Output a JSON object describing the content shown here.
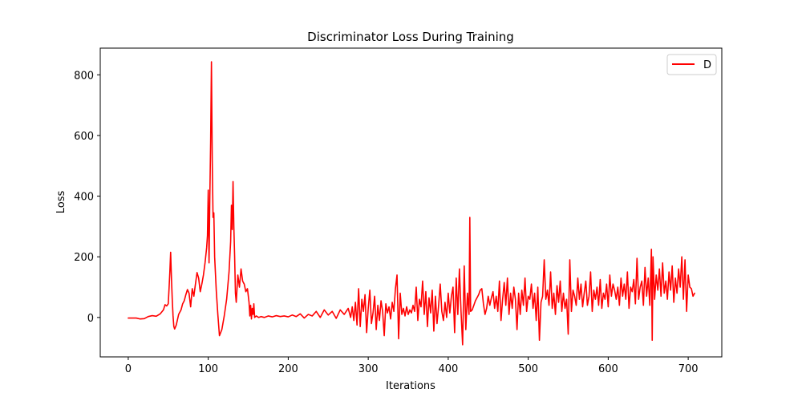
{
  "chart_data": {
    "type": "line",
    "title": "Discriminator Loss During Training",
    "xlabel": "Iterations",
    "ylabel": "Loss",
    "xlim": [
      -35,
      742
    ],
    "ylim": [
      -130,
      888
    ],
    "xticks": [
      0,
      100,
      200,
      300,
      400,
      500,
      600,
      700
    ],
    "yticks": [
      0,
      200,
      400,
      600,
      800
    ],
    "grid": false,
    "legend_position": "top-right",
    "series": [
      {
        "name": "D",
        "color": "#ff0000",
        "points": [
          [
            0,
            -2
          ],
          [
            5,
            -2
          ],
          [
            10,
            -2
          ],
          [
            15,
            -5
          ],
          [
            20,
            -4
          ],
          [
            25,
            3
          ],
          [
            30,
            6
          ],
          [
            35,
            4
          ],
          [
            40,
            12
          ],
          [
            44,
            25
          ],
          [
            46,
            42
          ],
          [
            48,
            38
          ],
          [
            50,
            45
          ],
          [
            51,
            95
          ],
          [
            52,
            150
          ],
          [
            53,
            215
          ],
          [
            54,
            130
          ],
          [
            55,
            60
          ],
          [
            56,
            5
          ],
          [
            57,
            -30
          ],
          [
            58,
            -38
          ],
          [
            60,
            -25
          ],
          [
            63,
            10
          ],
          [
            66,
            25
          ],
          [
            68,
            45
          ],
          [
            70,
            55
          ],
          [
            72,
            75
          ],
          [
            74,
            92
          ],
          [
            76,
            80
          ],
          [
            78,
            35
          ],
          [
            80,
            95
          ],
          [
            82,
            70
          ],
          [
            84,
            110
          ],
          [
            86,
            148
          ],
          [
            88,
            130
          ],
          [
            90,
            85
          ],
          [
            92,
            110
          ],
          [
            94,
            140
          ],
          [
            96,
            180
          ],
          [
            98,
            230
          ],
          [
            99,
            270
          ],
          [
            100,
            420
          ],
          [
            101,
            180
          ],
          [
            102,
            400
          ],
          [
            103,
            580
          ],
          [
            104,
            843
          ],
          [
            105,
            520
          ],
          [
            106,
            330
          ],
          [
            107,
            345
          ],
          [
            108,
            200
          ],
          [
            110,
            90
          ],
          [
            112,
            10
          ],
          [
            114,
            -60
          ],
          [
            117,
            -40
          ],
          [
            120,
            5
          ],
          [
            123,
            60
          ],
          [
            126,
            150
          ],
          [
            128,
            250
          ],
          [
            129,
            370
          ],
          [
            130,
            290
          ],
          [
            131,
            448
          ],
          [
            132,
            300
          ],
          [
            133,
            200
          ],
          [
            134,
            80
          ],
          [
            135,
            50
          ],
          [
            137,
            140
          ],
          [
            139,
            100
          ],
          [
            141,
            160
          ],
          [
            143,
            120
          ],
          [
            145,
            110
          ],
          [
            147,
            85
          ],
          [
            149,
            95
          ],
          [
            151,
            50
          ],
          [
            152,
            5
          ],
          [
            153,
            40
          ],
          [
            154,
            -5
          ],
          [
            155,
            30
          ],
          [
            156,
            10
          ],
          [
            157,
            45
          ],
          [
            158,
            0
          ],
          [
            160,
            5
          ],
          [
            163,
            0
          ],
          [
            166,
            3
          ],
          [
            170,
            0
          ],
          [
            175,
            5
          ],
          [
            180,
            2
          ],
          [
            185,
            6
          ],
          [
            190,
            3
          ],
          [
            195,
            5
          ],
          [
            200,
            2
          ],
          [
            205,
            8
          ],
          [
            210,
            3
          ],
          [
            215,
            12
          ],
          [
            220,
            -2
          ],
          [
            225,
            10
          ],
          [
            230,
            5
          ],
          [
            235,
            20
          ],
          [
            240,
            0
          ],
          [
            245,
            25
          ],
          [
            250,
            8
          ],
          [
            255,
            20
          ],
          [
            260,
            -3
          ],
          [
            265,
            25
          ],
          [
            270,
            10
          ],
          [
            275,
            30
          ],
          [
            278,
            0
          ],
          [
            280,
            35
          ],
          [
            282,
            -10
          ],
          [
            284,
            50
          ],
          [
            286,
            -25
          ],
          [
            288,
            95
          ],
          [
            290,
            -30
          ],
          [
            292,
            60
          ],
          [
            294,
            20
          ],
          [
            296,
            75
          ],
          [
            298,
            -50
          ],
          [
            300,
            30
          ],
          [
            302,
            90
          ],
          [
            304,
            -20
          ],
          [
            306,
            15
          ],
          [
            308,
            70
          ],
          [
            310,
            -40
          ],
          [
            312,
            40
          ],
          [
            314,
            -10
          ],
          [
            316,
            55
          ],
          [
            318,
            20
          ],
          [
            320,
            -60
          ],
          [
            322,
            45
          ],
          [
            324,
            15
          ],
          [
            326,
            35
          ],
          [
            328,
            -5
          ],
          [
            330,
            50
          ],
          [
            332,
            20
          ],
          [
            334,
            95
          ],
          [
            336,
            140
          ],
          [
            338,
            -70
          ],
          [
            340,
            80
          ],
          [
            342,
            10
          ],
          [
            344,
            30
          ],
          [
            346,
            5
          ],
          [
            348,
            35
          ],
          [
            350,
            10
          ],
          [
            352,
            25
          ],
          [
            354,
            15
          ],
          [
            356,
            40
          ],
          [
            358,
            20
          ],
          [
            360,
            100
          ],
          [
            362,
            -10
          ],
          [
            364,
            60
          ],
          [
            366,
            35
          ],
          [
            368,
            120
          ],
          [
            370,
            10
          ],
          [
            372,
            85
          ],
          [
            374,
            -30
          ],
          [
            376,
            65
          ],
          [
            378,
            15
          ],
          [
            380,
            90
          ],
          [
            382,
            -45
          ],
          [
            384,
            70
          ],
          [
            386,
            -20
          ],
          [
            388,
            40
          ],
          [
            390,
            110
          ],
          [
            392,
            20
          ],
          [
            394,
            -10
          ],
          [
            396,
            50
          ],
          [
            398,
            0
          ],
          [
            400,
            80
          ],
          [
            402,
            15
          ],
          [
            404,
            70
          ],
          [
            406,
            100
          ],
          [
            408,
            -50
          ],
          [
            410,
            130
          ],
          [
            412,
            10
          ],
          [
            414,
            160
          ],
          [
            416,
            20
          ],
          [
            418,
            -90
          ],
          [
            420,
            170
          ],
          [
            422,
            -40
          ],
          [
            424,
            80
          ],
          [
            426,
            10
          ],
          [
            427,
            330
          ],
          [
            428,
            20
          ],
          [
            430,
            25
          ],
          [
            432,
            40
          ],
          [
            434,
            55
          ],
          [
            436,
            65
          ],
          [
            438,
            75
          ],
          [
            440,
            90
          ],
          [
            442,
            95
          ],
          [
            444,
            45
          ],
          [
            446,
            10
          ],
          [
            448,
            30
          ],
          [
            450,
            70
          ],
          [
            452,
            40
          ],
          [
            454,
            65
          ],
          [
            456,
            85
          ],
          [
            458,
            30
          ],
          [
            460,
            70
          ],
          [
            462,
            20
          ],
          [
            464,
            120
          ],
          [
            466,
            -10
          ],
          [
            468,
            60
          ],
          [
            470,
            115
          ],
          [
            472,
            40
          ],
          [
            474,
            130
          ],
          [
            476,
            10
          ],
          [
            478,
            80
          ],
          [
            480,
            30
          ],
          [
            482,
            100
          ],
          [
            484,
            60
          ],
          [
            486,
            -40
          ],
          [
            488,
            80
          ],
          [
            490,
            10
          ],
          [
            492,
            90
          ],
          [
            494,
            40
          ],
          [
            496,
            130
          ],
          [
            498,
            20
          ],
          [
            500,
            70
          ],
          [
            502,
            60
          ],
          [
            504,
            110
          ],
          [
            506,
            30
          ],
          [
            508,
            80
          ],
          [
            510,
            -10
          ],
          [
            512,
            100
          ],
          [
            514,
            -75
          ],
          [
            516,
            50
          ],
          [
            518,
            70
          ],
          [
            520,
            190
          ],
          [
            522,
            60
          ],
          [
            524,
            90
          ],
          [
            526,
            40
          ],
          [
            528,
            150
          ],
          [
            530,
            30
          ],
          [
            532,
            80
          ],
          [
            534,
            10
          ],
          [
            536,
            105
          ],
          [
            538,
            50
          ],
          [
            540,
            120
          ],
          [
            542,
            20
          ],
          [
            544,
            80
          ],
          [
            546,
            30
          ],
          [
            548,
            60
          ],
          [
            550,
            -55
          ],
          [
            552,
            190
          ],
          [
            554,
            20
          ],
          [
            556,
            90
          ],
          [
            558,
            70
          ],
          [
            560,
            40
          ],
          [
            562,
            130
          ],
          [
            564,
            60
          ],
          [
            566,
            110
          ],
          [
            568,
            35
          ],
          [
            570,
            80
          ],
          [
            572,
            120
          ],
          [
            574,
            40
          ],
          [
            576,
            70
          ],
          [
            578,
            150
          ],
          [
            580,
            20
          ],
          [
            582,
            90
          ],
          [
            584,
            60
          ],
          [
            586,
            100
          ],
          [
            588,
            40
          ],
          [
            590,
            125
          ],
          [
            592,
            30
          ],
          [
            594,
            80
          ],
          [
            596,
            60
          ],
          [
            598,
            110
          ],
          [
            600,
            35
          ],
          [
            602,
            140
          ],
          [
            604,
            70
          ],
          [
            606,
            110
          ],
          [
            608,
            90
          ],
          [
            610,
            60
          ],
          [
            612,
            100
          ],
          [
            614,
            40
          ],
          [
            616,
            130
          ],
          [
            618,
            70
          ],
          [
            620,
            110
          ],
          [
            622,
            60
          ],
          [
            624,
            150
          ],
          [
            626,
            30
          ],
          [
            628,
            100
          ],
          [
            630,
            85
          ],
          [
            632,
            125
          ],
          [
            634,
            45
          ],
          [
            636,
            195
          ],
          [
            638,
            60
          ],
          [
            640,
            100
          ],
          [
            642,
            120
          ],
          [
            644,
            40
          ],
          [
            646,
            165
          ],
          [
            648,
            70
          ],
          [
            650,
            130
          ],
          [
            652,
            40
          ],
          [
            654,
            225
          ],
          [
            655,
            -75
          ],
          [
            656,
            200
          ],
          [
            658,
            60
          ],
          [
            660,
            140
          ],
          [
            662,
            90
          ],
          [
            664,
            160
          ],
          [
            666,
            70
          ],
          [
            668,
            180
          ],
          [
            670,
            80
          ],
          [
            672,
            120
          ],
          [
            674,
            60
          ],
          [
            676,
            150
          ],
          [
            678,
            90
          ],
          [
            680,
            170
          ],
          [
            682,
            50
          ],
          [
            684,
            130
          ],
          [
            686,
            80
          ],
          [
            688,
            160
          ],
          [
            690,
            100
          ],
          [
            692,
            200
          ],
          [
            694,
            60
          ],
          [
            696,
            190
          ],
          [
            698,
            20
          ],
          [
            700,
            140
          ],
          [
            702,
            100
          ],
          [
            704,
            95
          ],
          [
            706,
            70
          ],
          [
            708,
            80
          ]
        ]
      }
    ]
  }
}
